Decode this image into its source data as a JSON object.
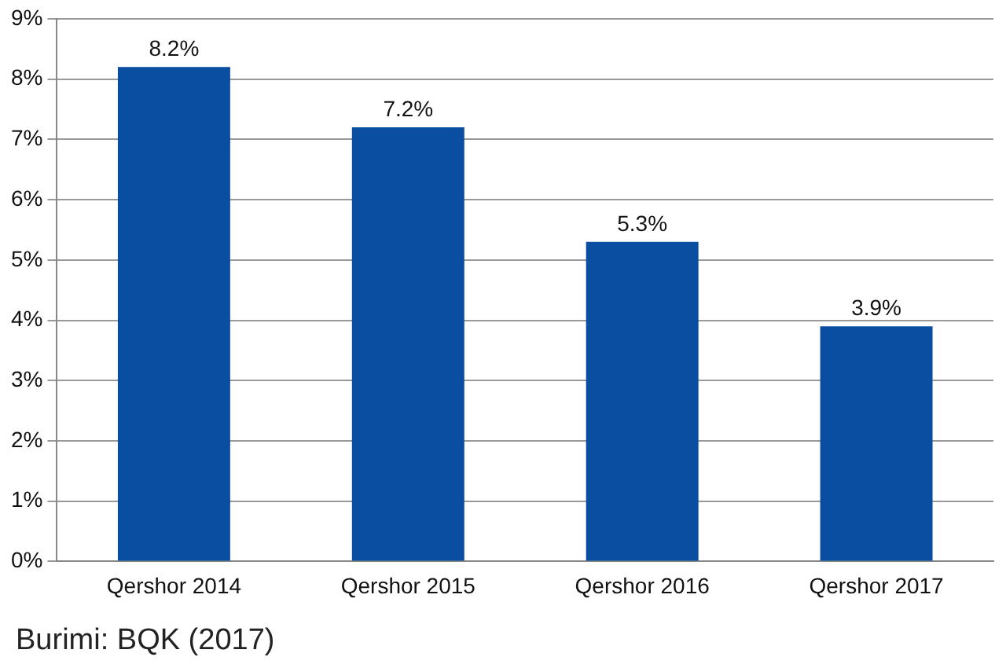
{
  "chart_data": {
    "type": "bar",
    "categories": [
      "Qershor 2014",
      "Qershor 2015",
      "Qershor 2016",
      "Qershor 2017"
    ],
    "values": [
      8.2,
      7.2,
      5.3,
      3.9
    ],
    "color": "#0a4ea2",
    "value_labels": [
      "8.2%",
      "7.2%",
      "5.3%",
      "3.9%"
    ],
    "ylim": [
      0,
      9
    ],
    "yticks": [
      {
        "value": 0,
        "label": "0%"
      },
      {
        "value": 1,
        "label": "1%"
      },
      {
        "value": 2,
        "label": "2%"
      },
      {
        "value": 3,
        "label": "3%"
      },
      {
        "value": 4,
        "label": "4%"
      },
      {
        "value": 5,
        "label": "5%"
      },
      {
        "value": 6,
        "label": "6%"
      },
      {
        "value": 7,
        "label": "7%"
      },
      {
        "value": 8,
        "label": "8%"
      },
      {
        "value": 9,
        "label": "9%"
      }
    ],
    "grid": "y",
    "annotations": [
      "Burimi: BQK (2017)"
    ]
  }
}
